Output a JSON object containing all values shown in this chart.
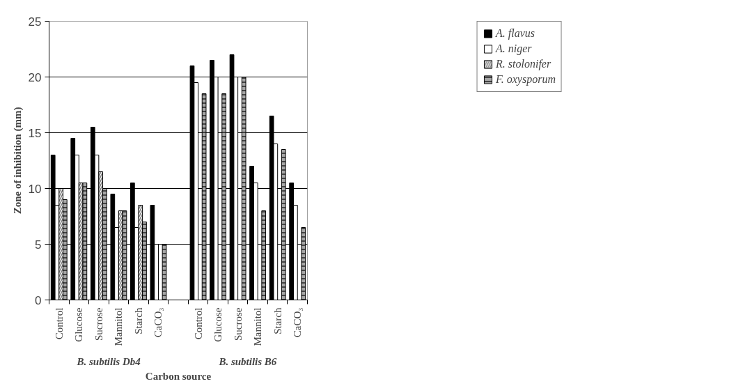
{
  "chart_data": {
    "type": "bar",
    "xlabel": "Carbon source",
    "ylabel": "Zone of inhibition (mm)",
    "categories": [
      "Control",
      "Glucose",
      "Sucrose",
      "Mannitol",
      "Starch",
      "CaCO₃",
      null,
      "Control",
      "Glucose",
      "Sucrose",
      "Mannitol",
      "Starch",
      "CaCO₃"
    ],
    "series": [
      {
        "name": "A. flavus",
        "color": "#000000",
        "values": [
          13,
          14.5,
          15.5,
          9.5,
          10.5,
          8.5,
          null,
          21,
          21.5,
          22,
          12,
          16.5,
          10.5
        ]
      },
      {
        "name": "A. niger",
        "color": "#ffffff",
        "values": [
          8.5,
          13,
          13,
          6.5,
          6.5,
          5,
          null,
          19.5,
          20,
          20,
          10.5,
          14,
          8.5
        ]
      },
      {
        "name": "R. stolonifer",
        "color": "#7f7f7f",
        "values": [
          10,
          10.5,
          11.5,
          8,
          8.5,
          null,
          null,
          null,
          null,
          null,
          null,
          null,
          null
        ]
      },
      {
        "name": "F. oxysporum",
        "color": "#a6a6a6",
        "values": [
          9,
          10.5,
          10,
          8,
          7,
          5,
          null,
          18.5,
          18.5,
          20,
          8,
          13.5,
          6.5
        ]
      }
    ],
    "annotations": [
      "B. subtilis Db4",
      "B. subtilis B6"
    ],
    "ylim": [
      0,
      25
    ],
    "yticks": [
      0,
      5,
      10,
      15,
      20,
      25
    ],
    "grid": "y",
    "legend": "top right"
  }
}
